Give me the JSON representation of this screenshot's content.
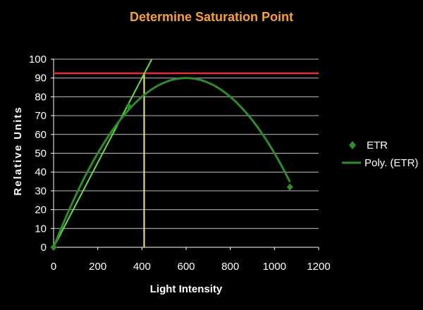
{
  "chart_data": {
    "type": "scatter",
    "title": "Determine Saturation Point",
    "xlabel": "Light Intensity",
    "ylabel": "Relative Units",
    "xlim": [
      0,
      1200
    ],
    "ylim": [
      0,
      100
    ],
    "xticks": [
      0,
      200,
      400,
      600,
      800,
      1000,
      1200
    ],
    "yticks": [
      0,
      10,
      20,
      30,
      40,
      50,
      60,
      70,
      80,
      90,
      100
    ],
    "grid": true,
    "legend_position": "right",
    "series": [
      {
        "name": "ETR",
        "kind": "scatter",
        "marker": "diamond",
        "x": [
          0,
          340,
          1070
        ],
        "y": [
          0,
          75,
          32
        ]
      },
      {
        "name": "Poly. (ETR)",
        "kind": "trendline",
        "coefficients": [
          0,
          0.3,
          -0.00025
        ],
        "x_range": [
          0,
          1070
        ]
      }
    ],
    "annotations": {
      "saturation_y": 92.5,
      "saturation_x": 410,
      "tangent_slope": 0.225
    },
    "colors": {
      "title": "#f5a13a",
      "background": "#000000",
      "plot_area": "#000000",
      "grid": "#bdbdbd",
      "axes": "#ffffff",
      "series": "#2e8b2e",
      "tangent": "#66dd44",
      "saturation_line": "#e03030",
      "vertical_line": "#f2ee7a",
      "text": "#ffffff"
    }
  }
}
